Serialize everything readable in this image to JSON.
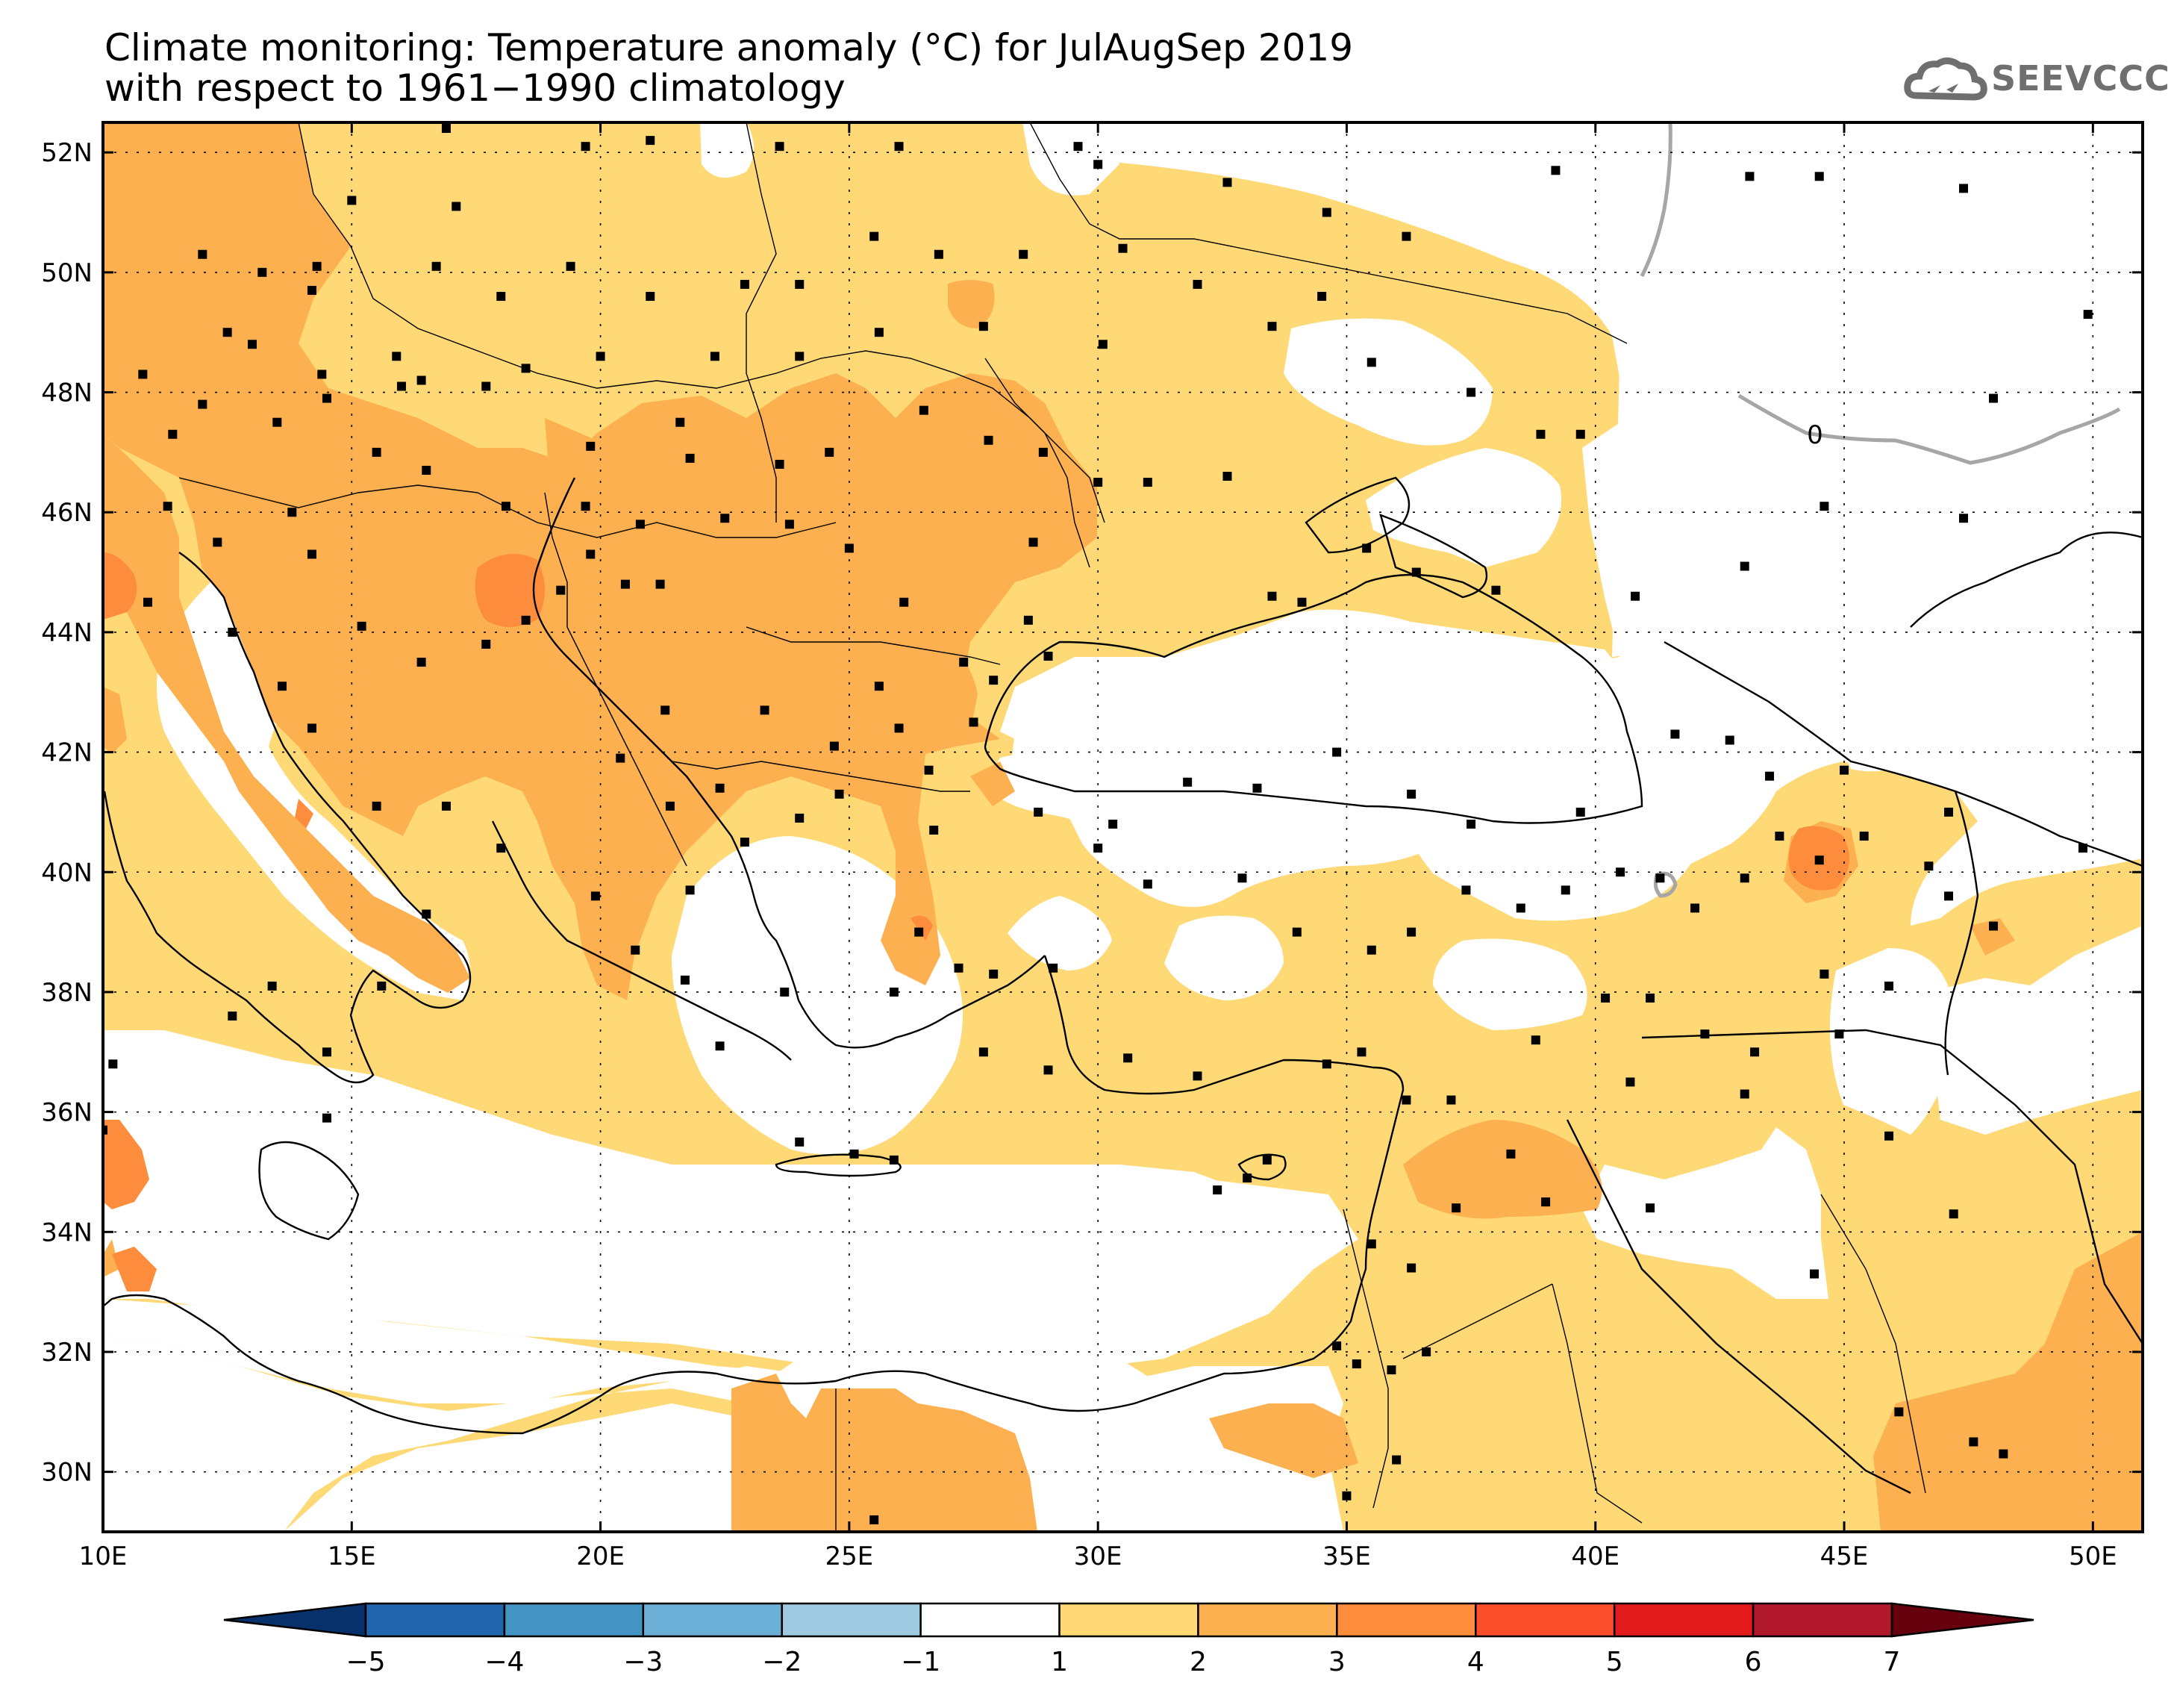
{
  "title": {
    "line1": "Climate monitoring: Temperature anomaly (°C) for JulAugSep 2019",
    "line2": "with respect to 1961−1990 climatology"
  },
  "logo": {
    "text": "SEEVCCC",
    "icon": "cloud-icon"
  },
  "map": {
    "lon_range": [
      10,
      51
    ],
    "lat_range": [
      29,
      52.5
    ],
    "lon_ticks": [
      "10E",
      "15E",
      "20E",
      "25E",
      "30E",
      "35E",
      "40E",
      "45E",
      "50E"
    ],
    "lat_ticks": [
      "30N",
      "32N",
      "34N",
      "36N",
      "38N",
      "40N",
      "42N",
      "44N",
      "46N",
      "48N",
      "50N",
      "52N"
    ],
    "contour_label": "0",
    "grid": "dotted"
  },
  "colorbar": {
    "labels": [
      "−5",
      "−4",
      "−3",
      "−2",
      "−1",
      "1",
      "2",
      "3",
      "4",
      "5",
      "6",
      "7"
    ],
    "colors": [
      "#08306b",
      "#2166ac",
      "#4393c3",
      "#6baed6",
      "#9ecae1",
      "#ffffff",
      "#fed976",
      "#fdb04f",
      "#fd8d3c",
      "#fc4e2a",
      "#e31a1c",
      "#b2182b",
      "#67000d"
    ]
  },
  "colors": {
    "anomaly_1_2": "#fed976",
    "anomaly_2_3": "#fdb04f",
    "anomaly_3_4": "#fd8d3c",
    "station": "#000000",
    "zero_contour": "#a6a6a6"
  }
}
